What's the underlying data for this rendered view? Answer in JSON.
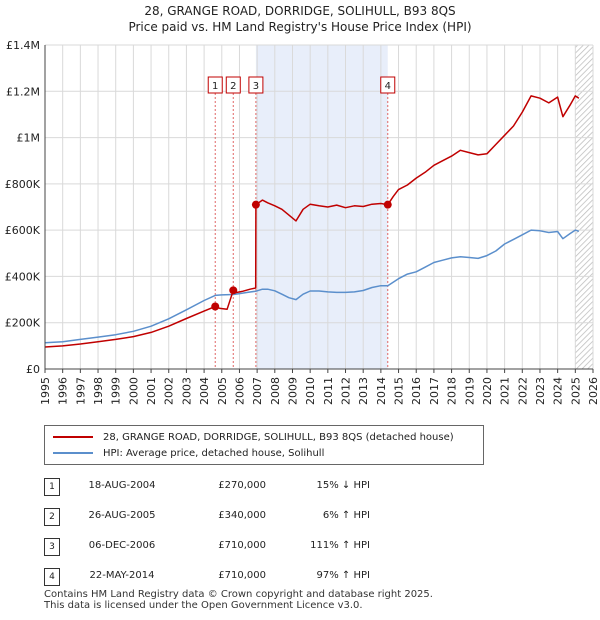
{
  "header": {
    "title": "28, GRANGE ROAD, DORRIDGE, SOLIHULL, B93 8QS",
    "subtitle": "Price paid vs. HM Land Registry's House Price Index (HPI)"
  },
  "colors": {
    "property": "#c00000",
    "hpi": "#5b8fcc",
    "shade": "#e8eefa",
    "grid": "#d9d9d9",
    "marker_line": "#e06666"
  },
  "chart_data": {
    "type": "line",
    "title": "28, GRANGE ROAD, DORRIDGE, SOLIHULL, B93 8QS",
    "subtitle": "Price paid vs. HM Land Registry's House Price Index (HPI)",
    "xlabel": "",
    "ylabel": "",
    "xlim": [
      1995,
      2026
    ],
    "ylim": [
      0,
      1400000
    ],
    "y_ticks": [
      0,
      200000,
      400000,
      600000,
      800000,
      1000000,
      1200000,
      1400000
    ],
    "y_tick_labels": [
      "£0",
      "£200K",
      "£400K",
      "£600K",
      "£800K",
      "£1M",
      "£1.2M",
      "£1.4M"
    ],
    "x_ticks": [
      1995,
      1996,
      1997,
      1998,
      1999,
      2000,
      2001,
      2002,
      2003,
      2004,
      2005,
      2006,
      2007,
      2008,
      2009,
      2010,
      2011,
      2012,
      2013,
      2014,
      2015,
      2016,
      2017,
      2018,
      2019,
      2020,
      2021,
      2022,
      2023,
      2024,
      2025,
      2026
    ],
    "x_tick_labels": [
      "1995",
      "1996",
      "1997",
      "1998",
      "1999",
      "2000",
      "2001",
      "2002",
      "2003",
      "2004",
      "2005",
      "2006",
      "2007",
      "2008",
      "2009",
      "2010",
      "2011",
      "2012",
      "2013",
      "2014",
      "2015",
      "2016",
      "2017",
      "2018",
      "2019",
      "2020",
      "2021",
      "2022",
      "2023",
      "2024",
      "2025",
      "2026"
    ],
    "grid": true,
    "shaded_period": [
      2006.93,
      2014.39
    ],
    "hatched_from": 2025.0,
    "series": [
      {
        "name": "28, GRANGE ROAD, DORRIDGE, SOLIHULL, B93 8QS (detached house)",
        "color": "#c00000",
        "x": [
          1995.0,
          1996.0,
          1997.0,
          1998.0,
          1999.0,
          2000.0,
          2001.0,
          2002.0,
          2003.0,
          2004.0,
          2004.63,
          2004.9,
          2005.3,
          2005.65,
          2005.8,
          2006.2,
          2006.6,
          2006.92,
          2006.93,
          2007.3,
          2007.6,
          2008.0,
          2008.4,
          2008.8,
          2009.2,
          2009.6,
          2010.0,
          2010.5,
          2011.0,
          2011.5,
          2012.0,
          2012.5,
          2013.0,
          2013.5,
          2014.0,
          2014.39,
          2014.7,
          2015.0,
          2015.5,
          2016.0,
          2016.5,
          2017.0,
          2017.5,
          2018.0,
          2018.5,
          2019.0,
          2019.5,
          2020.0,
          2020.5,
          2021.0,
          2021.5,
          2022.0,
          2022.5,
          2023.0,
          2023.5,
          2024.0,
          2024.3,
          2024.7,
          2025.0,
          2025.2
        ],
        "values": [
          95000,
          100000,
          108000,
          118000,
          128000,
          140000,
          158000,
          185000,
          218000,
          250000,
          270000,
          262000,
          258000,
          340000,
          330000,
          336000,
          345000,
          350000,
          710000,
          730000,
          718000,
          705000,
          690000,
          665000,
          640000,
          690000,
          712000,
          705000,
          700000,
          708000,
          697000,
          705000,
          702000,
          712000,
          715000,
          710000,
          745000,
          775000,
          795000,
          825000,
          850000,
          880000,
          900000,
          920000,
          945000,
          935000,
          925000,
          930000,
          970000,
          1010000,
          1050000,
          1110000,
          1180000,
          1170000,
          1150000,
          1175000,
          1090000,
          1140000,
          1180000,
          1170000
        ]
      },
      {
        "name": "HPI: Average price, detached house, Solihull",
        "color": "#5b8fcc",
        "x": [
          1995.0,
          1996.0,
          1997.0,
          1998.0,
          1999.0,
          2000.0,
          2001.0,
          2002.0,
          2003.0,
          2004.0,
          2004.63,
          2005.0,
          2005.65,
          2006.0,
          2006.5,
          2006.93,
          2007.3,
          2007.6,
          2008.0,
          2008.4,
          2008.8,
          2009.2,
          2009.6,
          2010.0,
          2010.5,
          2011.0,
          2011.5,
          2012.0,
          2012.5,
          2013.0,
          2013.5,
          2014.0,
          2014.39,
          2015.0,
          2015.5,
          2016.0,
          2016.5,
          2017.0,
          2017.5,
          2018.0,
          2018.5,
          2019.0,
          2019.5,
          2020.0,
          2020.5,
          2021.0,
          2021.5,
          2022.0,
          2022.5,
          2023.0,
          2023.5,
          2024.0,
          2024.3,
          2024.7,
          2025.0,
          2025.2
        ],
        "values": [
          113000,
          118000,
          128000,
          138000,
          148000,
          163000,
          185000,
          217000,
          256000,
          296000,
          318000,
          320000,
          322000,
          326000,
          332000,
          336000,
          345000,
          345000,
          338000,
          323000,
          308000,
          300000,
          323000,
          337000,
          337000,
          333000,
          331000,
          331000,
          333000,
          339000,
          352000,
          360000,
          360000,
          390000,
          410000,
          420000,
          440000,
          460000,
          470000,
          480000,
          485000,
          482000,
          478000,
          490000,
          510000,
          540000,
          560000,
          580000,
          600000,
          597000,
          590000,
          594000,
          563000,
          585000,
          600000,
          595000
        ]
      }
    ],
    "transactions": [
      {
        "label": "1",
        "x": 2004.63,
        "value": 270000
      },
      {
        "label": "2",
        "x": 2005.65,
        "value": 340000
      },
      {
        "label": "3",
        "x": 2006.93,
        "value": 710000
      },
      {
        "label": "4",
        "x": 2014.39,
        "value": 710000
      }
    ]
  },
  "legend": {
    "property_label": "28, GRANGE ROAD, DORRIDGE, SOLIHULL, B93 8QS (detached house)",
    "hpi_label": "HPI: Average price, detached house, Solihull"
  },
  "table": {
    "rows": [
      {
        "num": "1",
        "date": "18-AUG-2004",
        "price": "£270,000",
        "hpi": "15% ↓ HPI"
      },
      {
        "num": "2",
        "date": "26-AUG-2005",
        "price": "£340,000",
        "hpi": "6% ↑ HPI"
      },
      {
        "num": "3",
        "date": "06-DEC-2006",
        "price": "£710,000",
        "hpi": "111% ↑ HPI"
      },
      {
        "num": "4",
        "date": "22-MAY-2014",
        "price": "£710,000",
        "hpi": "97% ↑ HPI"
      }
    ]
  },
  "footer": {
    "line1": "Contains HM Land Registry data © Crown copyright and database right 2025.",
    "line2": "This data is licensed under the Open Government Licence v3.0."
  }
}
